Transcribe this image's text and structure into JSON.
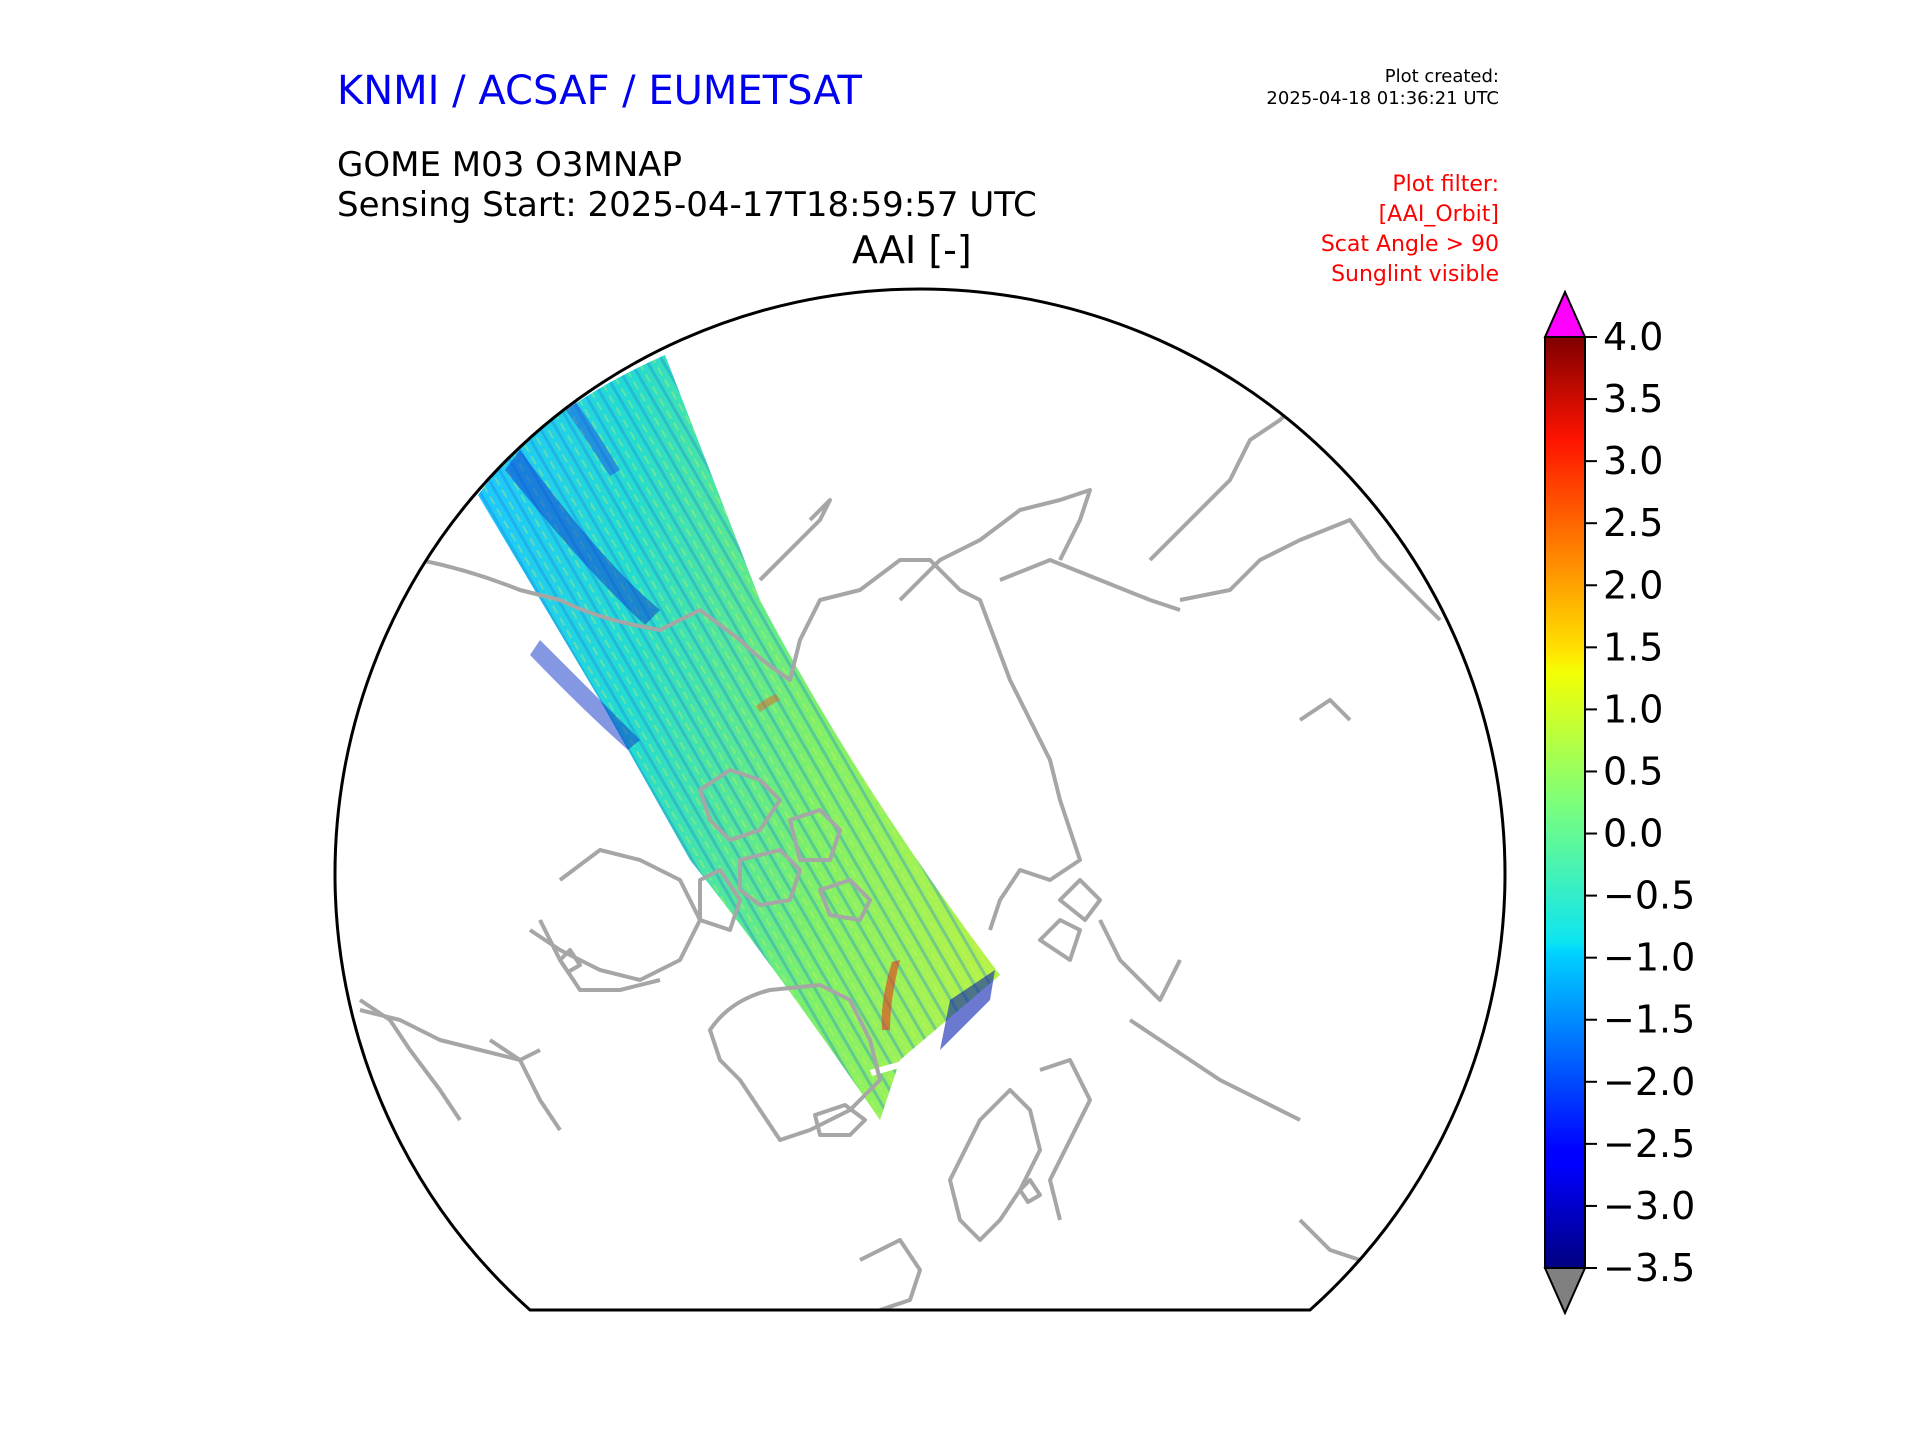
{
  "header": {
    "org": "KNMI / ACSAF / EUMETSAT",
    "created_label": "Plot created:",
    "created_value": "2025-04-18 01:36:21 UTC",
    "product": "GOME M03 O3MNAP",
    "sensing": "Sensing Start: 2025-04-17T18:59:57 UTC",
    "variable": "AAI [-]"
  },
  "filter": {
    "title": "Plot filter:",
    "lines": [
      "[AAI_Orbit]",
      "Scat Angle > 90",
      "Sunglint visible"
    ]
  },
  "colorbar": {
    "min": -3.5,
    "max": 4.0,
    "ticks": [
      "4.0",
      "3.5",
      "3.0",
      "2.5",
      "2.0",
      "1.5",
      "1.0",
      "0.5",
      "0.0",
      "−0.5",
      "−1.0",
      "−1.5",
      "−2.0",
      "−2.5",
      "−3.0",
      "−3.5"
    ],
    "over_color": "#ff00ff",
    "under_color": "#808080",
    "colormap": "jet"
  },
  "map": {
    "projection": "north-polar-stereographic",
    "coastline_color": "#a6a6a6",
    "swath_dominant_values": "-1.0 to 1.0"
  }
}
